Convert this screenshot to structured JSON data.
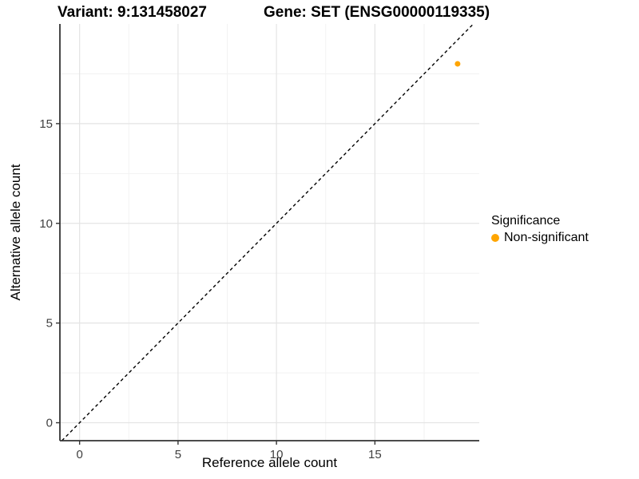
{
  "chart_data": {
    "type": "scatter",
    "titles": {
      "variant": "Variant: 9:131458027",
      "gene": "Gene: SET (ENSG00000119335)"
    },
    "xlabel": "Reference allele count",
    "ylabel": "Alternative allele count",
    "xlim": [
      -1,
      20.3
    ],
    "ylim": [
      -0.9,
      20
    ],
    "x_major_ticks": [
      0,
      5,
      10,
      15
    ],
    "y_major_ticks": [
      0,
      5,
      10,
      15
    ],
    "x_minor_ticks": [
      2.5,
      7.5,
      12.5,
      17.5
    ],
    "y_minor_ticks": [
      2.5,
      7.5,
      12.5,
      17.5
    ],
    "grid": "major+minor",
    "series": [
      {
        "name": "Non-significant",
        "color": "#FFA500",
        "points": [
          {
            "x": 19.2,
            "y": 18
          }
        ]
      }
    ],
    "identity_line": {
      "slope": 1,
      "intercept": 0,
      "style": "dashed",
      "color": "#000000"
    },
    "legend": {
      "title": "Significance",
      "position": "right",
      "items": [
        {
          "label": "Non-significant",
          "color": "#FFA500"
        }
      ]
    }
  },
  "colors": {
    "background": "#ffffff",
    "axis_line": "#333333",
    "tick_mark": "#333333",
    "tick_label": "#404040",
    "grid_major": "#e4e4e4",
    "grid_minor": "#f2f2f2",
    "title_text": "#000000"
  }
}
